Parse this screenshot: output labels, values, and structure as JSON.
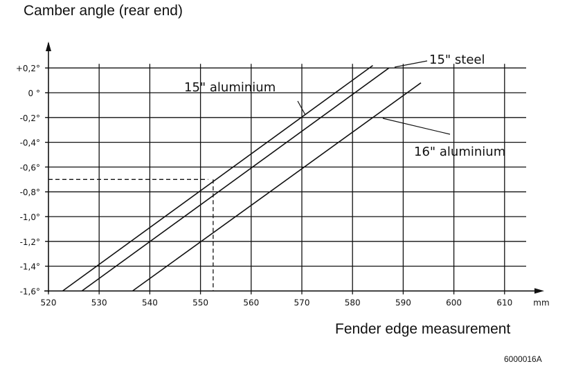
{
  "chart_data": {
    "type": "line",
    "title": "Camber angle (rear end)",
    "xlabel": "Fender edge measurement",
    "x_unit": "mm",
    "figure_id": "6000016A",
    "xlim": [
      520,
      613
    ],
    "ylim": [
      -1.6,
      0.2
    ],
    "grid": true,
    "x_ticks": [
      520,
      530,
      540,
      550,
      560,
      570,
      580,
      590,
      600,
      610
    ],
    "x_tick_labels": [
      "520",
      "530",
      "540",
      "550",
      "560",
      "570",
      "580",
      "590",
      "600",
      "610"
    ],
    "y_ticks": [
      0.2,
      0,
      -0.2,
      -0.4,
      -0.6,
      -0.8,
      -1.0,
      -1.2,
      -1.4,
      -1.6
    ],
    "y_tick_labels": [
      "+0,2°",
      "0 °",
      "-0,2°",
      "-0,4°",
      "-0,6°",
      "-0,8°",
      "-1,0°",
      "-1,2°",
      "-1,4°",
      "-1,6°"
    ],
    "series": [
      {
        "name": "15\" aluminium",
        "x": [
          522.8,
          584.0
        ],
        "y": [
          -1.6,
          0.22
        ]
      },
      {
        "name": "15\" steel",
        "x": [
          526.6,
          587.2
        ],
        "y": [
          -1.6,
          0.2
        ]
      },
      {
        "name": "16\" aluminium",
        "x": [
          536.6,
          593.5
        ],
        "y": [
          -1.6,
          0.08
        ]
      }
    ],
    "annotations": [
      {
        "text": "15\" aluminium",
        "series": 0
      },
      {
        "text": "15\" steel",
        "series": 1
      },
      {
        "text": "16\" aluminium",
        "series": 2
      }
    ],
    "reference_lines": {
      "y_value": -0.7,
      "x_value": 552.5,
      "y_from_x": 520,
      "y_to_x": 551.5,
      "x_from_y": -1.6,
      "x_to_y": -0.7
    }
  }
}
